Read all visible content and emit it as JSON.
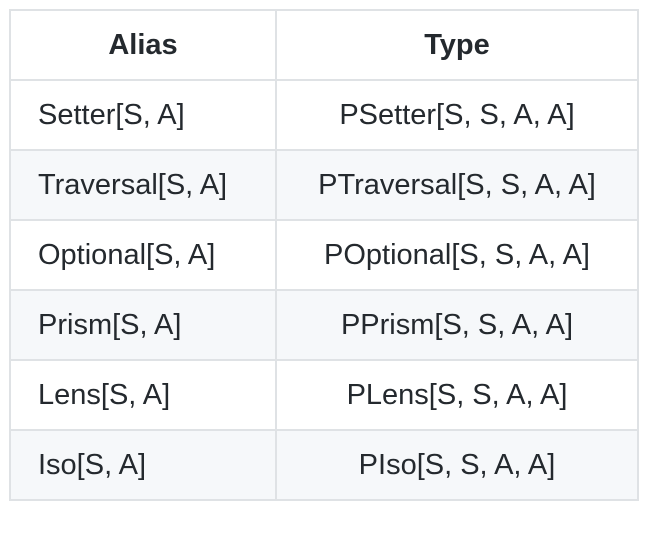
{
  "table": {
    "headers": [
      "Alias",
      "Type"
    ],
    "rows": [
      [
        "Setter[S, A]",
        "PSetter[S, S, A, A]"
      ],
      [
        "Traversal[S, A]",
        "PTraversal[S, S, A, A]"
      ],
      [
        "Optional[S, A]",
        "POptional[S, S, A, A]"
      ],
      [
        "Prism[S, A]",
        "PPrism[S, S, A, A]"
      ],
      [
        "Lens[S, A]",
        "PLens[S, S, A, A]"
      ],
      [
        "Iso[S, A]",
        "PIso[S, S, A, A]"
      ]
    ]
  },
  "colors": {
    "border": "#dfe2e5",
    "stripe": "#f6f8fa",
    "text": "#24292e"
  }
}
